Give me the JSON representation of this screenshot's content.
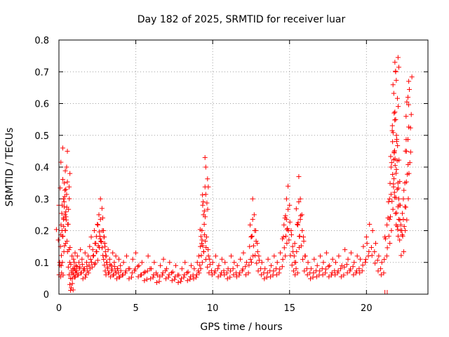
{
  "chart_data": {
    "type": "scatter",
    "title": "Day 182 of 2025, SRMTID for receiver luar",
    "xlabel": "GPS time / hours",
    "ylabel": "SRMTID / TECUs",
    "xlim": [
      0,
      24
    ],
    "ylim": [
      0,
      0.8
    ],
    "xticks": [
      0,
      5,
      10,
      15,
      20
    ],
    "xtick_labels": [
      "0",
      "5",
      "10",
      "15",
      "20"
    ],
    "yticks": [
      0,
      0.1,
      0.2,
      0.3,
      0.4,
      0.5,
      0.6,
      0.7,
      0.8
    ],
    "ytick_labels": [
      "0",
      "0.1",
      "0.2",
      "0.3",
      "0.4",
      "0.5",
      "0.6",
      "0.7",
      "0.8"
    ],
    "grid": true,
    "marker": "+",
    "color": "#ff0000",
    "series": [
      {
        "name": "SRMTID",
        "x": [
          0.0,
          0.05,
          0.1,
          0.15,
          0.2,
          0.25,
          0.3,
          0.35,
          0.4,
          0.45,
          0.5,
          0.55,
          0.6,
          0.65,
          0.7,
          0.75,
          0.8,
          0.85,
          0.9,
          0.95,
          1.0,
          1.05,
          1.1,
          1.2,
          1.3,
          1.4,
          1.5,
          1.6,
          1.7,
          1.8,
          1.9,
          2.0,
          2.1,
          2.2,
          2.3,
          2.4,
          2.5,
          2.6,
          2.7,
          2.8,
          2.85,
          2.9,
          2.95,
          3.0,
          3.05,
          3.1,
          3.2,
          3.3,
          3.4,
          3.5,
          3.6,
          3.7,
          3.8,
          3.9,
          4.0,
          4.2,
          4.4,
          4.6,
          4.8,
          5.0,
          5.2,
          5.4,
          5.6,
          5.8,
          6.0,
          6.2,
          6.4,
          6.6,
          6.8,
          7.0,
          7.2,
          7.4,
          7.6,
          7.8,
          8.0,
          8.2,
          8.4,
          8.6,
          8.8,
          9.0,
          9.1,
          9.2,
          9.3,
          9.35,
          9.4,
          9.45,
          9.5,
          9.55,
          9.6,
          9.7,
          9.8,
          10.0,
          10.2,
          10.4,
          10.6,
          10.8,
          11.0,
          11.2,
          11.4,
          11.6,
          11.8,
          12.0,
          12.2,
          12.4,
          12.5,
          12.6,
          12.7,
          12.8,
          12.9,
          13.0,
          13.2,
          13.4,
          13.6,
          13.8,
          14.0,
          14.2,
          14.4,
          14.6,
          14.7,
          14.8,
          14.9,
          15.0,
          15.1,
          15.2,
          15.3,
          15.4,
          15.5,
          15.6,
          15.7,
          15.8,
          15.9,
          16.0,
          16.2,
          16.4,
          16.6,
          16.8,
          17.0,
          17.2,
          17.4,
          17.6,
          17.8,
          18.0,
          18.2,
          18.4,
          18.6,
          18.8,
          19.0,
          19.2,
          19.4,
          19.6,
          19.8,
          20.0,
          20.2,
          20.4,
          20.6,
          20.8,
          21.0,
          21.2,
          21.4,
          21.5,
          21.6,
          21.7,
          21.8,
          21.85,
          21.9,
          21.95,
          22.0,
          22.05,
          22.1,
          22.2,
          22.3,
          22.4,
          22.5,
          22.6,
          22.7,
          22.75
        ],
        "y": [
          0.28,
          0.1,
          0.15,
          0.09,
          0.2,
          0.46,
          0.3,
          0.35,
          0.25,
          0.33,
          0.4,
          0.45,
          0.22,
          0.14,
          0.1,
          0.05,
          0.02,
          0.12,
          0.08,
          0.11,
          0.1,
          0.13,
          0.09,
          0.12,
          0.1,
          0.14,
          0.11,
          0.08,
          0.13,
          0.1,
          0.12,
          0.15,
          0.18,
          0.14,
          0.2,
          0.16,
          0.22,
          0.25,
          0.3,
          0.27,
          0.24,
          0.2,
          0.18,
          0.15,
          0.12,
          0.1,
          0.14,
          0.11,
          0.09,
          0.13,
          0.1,
          0.12,
          0.08,
          0.11,
          0.09,
          0.1,
          0.12,
          0.08,
          0.11,
          0.13,
          0.09,
          0.1,
          0.07,
          0.12,
          0.08,
          0.1,
          0.06,
          0.09,
          0.11,
          0.08,
          0.1,
          0.07,
          0.09,
          0.06,
          0.08,
          0.1,
          0.07,
          0.09,
          0.08,
          0.1,
          0.12,
          0.15,
          0.2,
          0.28,
          0.25,
          0.22,
          0.43,
          0.4,
          0.18,
          0.14,
          0.11,
          0.1,
          0.12,
          0.09,
          0.11,
          0.1,
          0.08,
          0.12,
          0.1,
          0.09,
          0.11,
          0.13,
          0.1,
          0.15,
          0.18,
          0.3,
          0.25,
          0.2,
          0.16,
          0.12,
          0.1,
          0.08,
          0.11,
          0.09,
          0.12,
          0.1,
          0.13,
          0.18,
          0.24,
          0.3,
          0.34,
          0.28,
          0.2,
          0.15,
          0.12,
          0.1,
          0.22,
          0.37,
          0.3,
          0.25,
          0.18,
          0.12,
          0.1,
          0.08,
          0.11,
          0.09,
          0.12,
          0.1,
          0.13,
          0.09,
          0.11,
          0.1,
          0.12,
          0.09,
          0.14,
          0.11,
          0.13,
          0.1,
          0.12,
          0.11,
          0.15,
          0.18,
          0.22,
          0.2,
          0.16,
          0.12,
          0.1,
          0.18,
          0.24,
          0.3,
          0.4,
          0.48,
          0.57,
          0.73,
          0.7,
          0.5,
          0.42,
          0.35,
          0.3,
          0.28,
          0.2,
          0.3,
          0.35,
          0.45,
          0.62,
          0.67
        ]
      }
    ],
    "hour_tick_marks": [
      21.2,
      21.35
    ]
  }
}
